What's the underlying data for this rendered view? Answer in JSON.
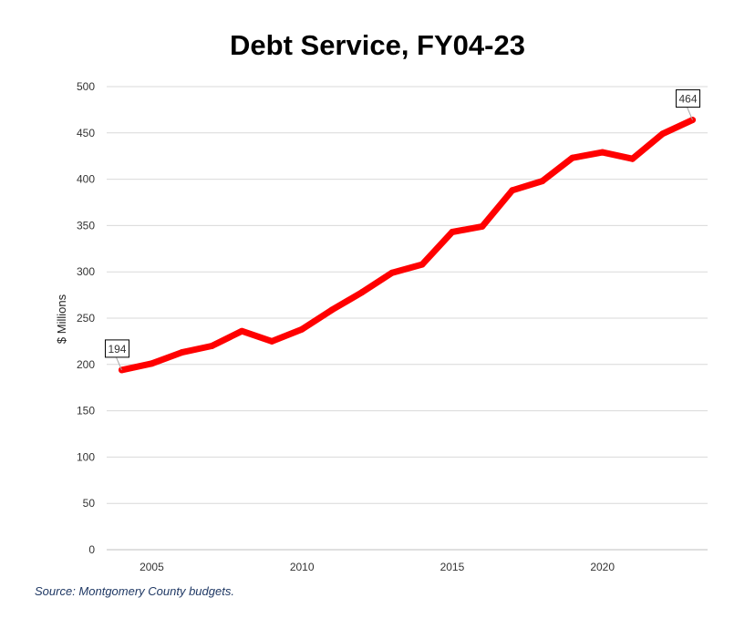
{
  "chart_data": {
    "type": "line",
    "title": "Debt Service, FY04-23",
    "xlabel": "",
    "ylabel": "$ Millions",
    "x": [
      2004,
      2005,
      2006,
      2007,
      2008,
      2009,
      2010,
      2011,
      2012,
      2013,
      2014,
      2015,
      2016,
      2017,
      2018,
      2019,
      2020,
      2021,
      2022,
      2023
    ],
    "series": [
      {
        "values": [
          194,
          201,
          213,
          220,
          236,
          225,
          238,
          259,
          278,
          299,
          308,
          343,
          349,
          388,
          398,
          423,
          429,
          422,
          449,
          464
        ]
      }
    ],
    "xticks": [
      2005,
      2010,
      2015,
      2020
    ],
    "yticks": [
      0,
      50,
      100,
      150,
      200,
      250,
      300,
      350,
      400,
      450,
      500
    ],
    "ylim": [
      0,
      500
    ],
    "xlim": [
      2003.5,
      2023.5
    ],
    "grid": "horizontal",
    "line_color": "#ff0000",
    "data_labels": [
      {
        "x": 2004,
        "text": "194"
      },
      {
        "x": 2023,
        "text": "464"
      }
    ]
  },
  "source": "Source: Montgomery County budgets."
}
